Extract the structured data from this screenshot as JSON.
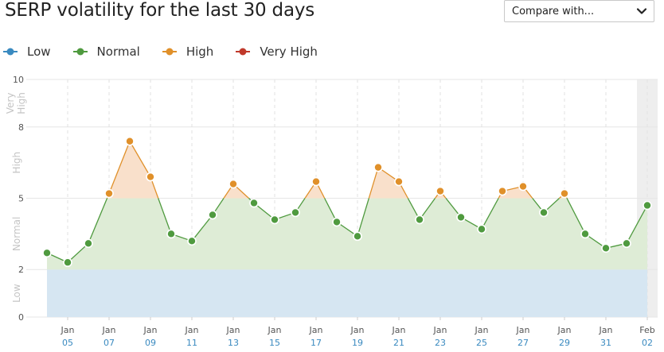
{
  "header": {
    "title": "SERP volatility for the last 30 days",
    "compare_label": "Compare with..."
  },
  "colors": {
    "low": "#3a8ac0",
    "normal": "#4f9a3f",
    "high": "#e0902a",
    "very_high": "#c0392b",
    "low_fill": "#d6e6f2",
    "normal_fill": "#deecd6",
    "high_fill": "#f9e0cb"
  },
  "legend": [
    {
      "key": "low",
      "label": "Low"
    },
    {
      "key": "normal",
      "label": "Normal"
    },
    {
      "key": "high",
      "label": "High"
    },
    {
      "key": "very_high",
      "label": "Very High"
    }
  ],
  "chart_data": {
    "type": "area",
    "title": "SERP volatility for the last 30 days",
    "ylim": [
      0,
      10
    ],
    "yticks": [
      0,
      2,
      5,
      8,
      10
    ],
    "bands": [
      {
        "key": "low",
        "label": "Low",
        "from": 0,
        "to": 2
      },
      {
        "key": "normal",
        "label": "Normal",
        "from": 2,
        "to": 5
      },
      {
        "key": "high",
        "label": "High",
        "from": 5,
        "to": 8
      },
      {
        "key": "very_high",
        "label": "Very High",
        "from": 8,
        "to": 10
      }
    ],
    "x": [
      "Jan 04",
      "Jan 05",
      "Jan 06",
      "Jan 07",
      "Jan 08",
      "Jan 09",
      "Jan 10",
      "Jan 11",
      "Jan 12",
      "Jan 13",
      "Jan 14",
      "Jan 15",
      "Jan 16",
      "Jan 17",
      "Jan 18",
      "Jan 19",
      "Jan 20",
      "Jan 21",
      "Jan 22",
      "Jan 23",
      "Jan 24",
      "Jan 25",
      "Jan 26",
      "Jan 27",
      "Jan 28",
      "Jan 29",
      "Jan 30",
      "Jan 31",
      "Feb 01",
      "Feb 02"
    ],
    "values": [
      2.7,
      2.3,
      3.1,
      5.2,
      7.4,
      5.9,
      3.5,
      3.2,
      4.3,
      5.6,
      4.8,
      4.1,
      4.4,
      5.7,
      4.0,
      3.4,
      6.3,
      5.7,
      4.1,
      5.3,
      4.2,
      3.7,
      5.3,
      5.5,
      4.4,
      5.2,
      3.5,
      2.9,
      3.1,
      4.7
    ],
    "xticks": [
      {
        "top": "Jan",
        "bottom": "05",
        "index": 1
      },
      {
        "top": "Jan",
        "bottom": "07",
        "index": 3
      },
      {
        "top": "Jan",
        "bottom": "09",
        "index": 5
      },
      {
        "top": "Jan",
        "bottom": "11",
        "index": 7
      },
      {
        "top": "Jan",
        "bottom": "13",
        "index": 9
      },
      {
        "top": "Jan",
        "bottom": "15",
        "index": 11
      },
      {
        "top": "Jan",
        "bottom": "17",
        "index": 13
      },
      {
        "top": "Jan",
        "bottom": "19",
        "index": 15
      },
      {
        "top": "Jan",
        "bottom": "21",
        "index": 17
      },
      {
        "top": "Jan",
        "bottom": "23",
        "index": 19
      },
      {
        "top": "Jan",
        "bottom": "25",
        "index": 21
      },
      {
        "top": "Jan",
        "bottom": "27",
        "index": 23
      },
      {
        "top": "Jan",
        "bottom": "29",
        "index": 25
      },
      {
        "top": "Jan",
        "bottom": "31",
        "index": 27
      },
      {
        "top": "Feb",
        "bottom": "02",
        "index": 29
      }
    ],
    "highlighted_index": 29,
    "grid": true,
    "legend_position": "top-left"
  }
}
